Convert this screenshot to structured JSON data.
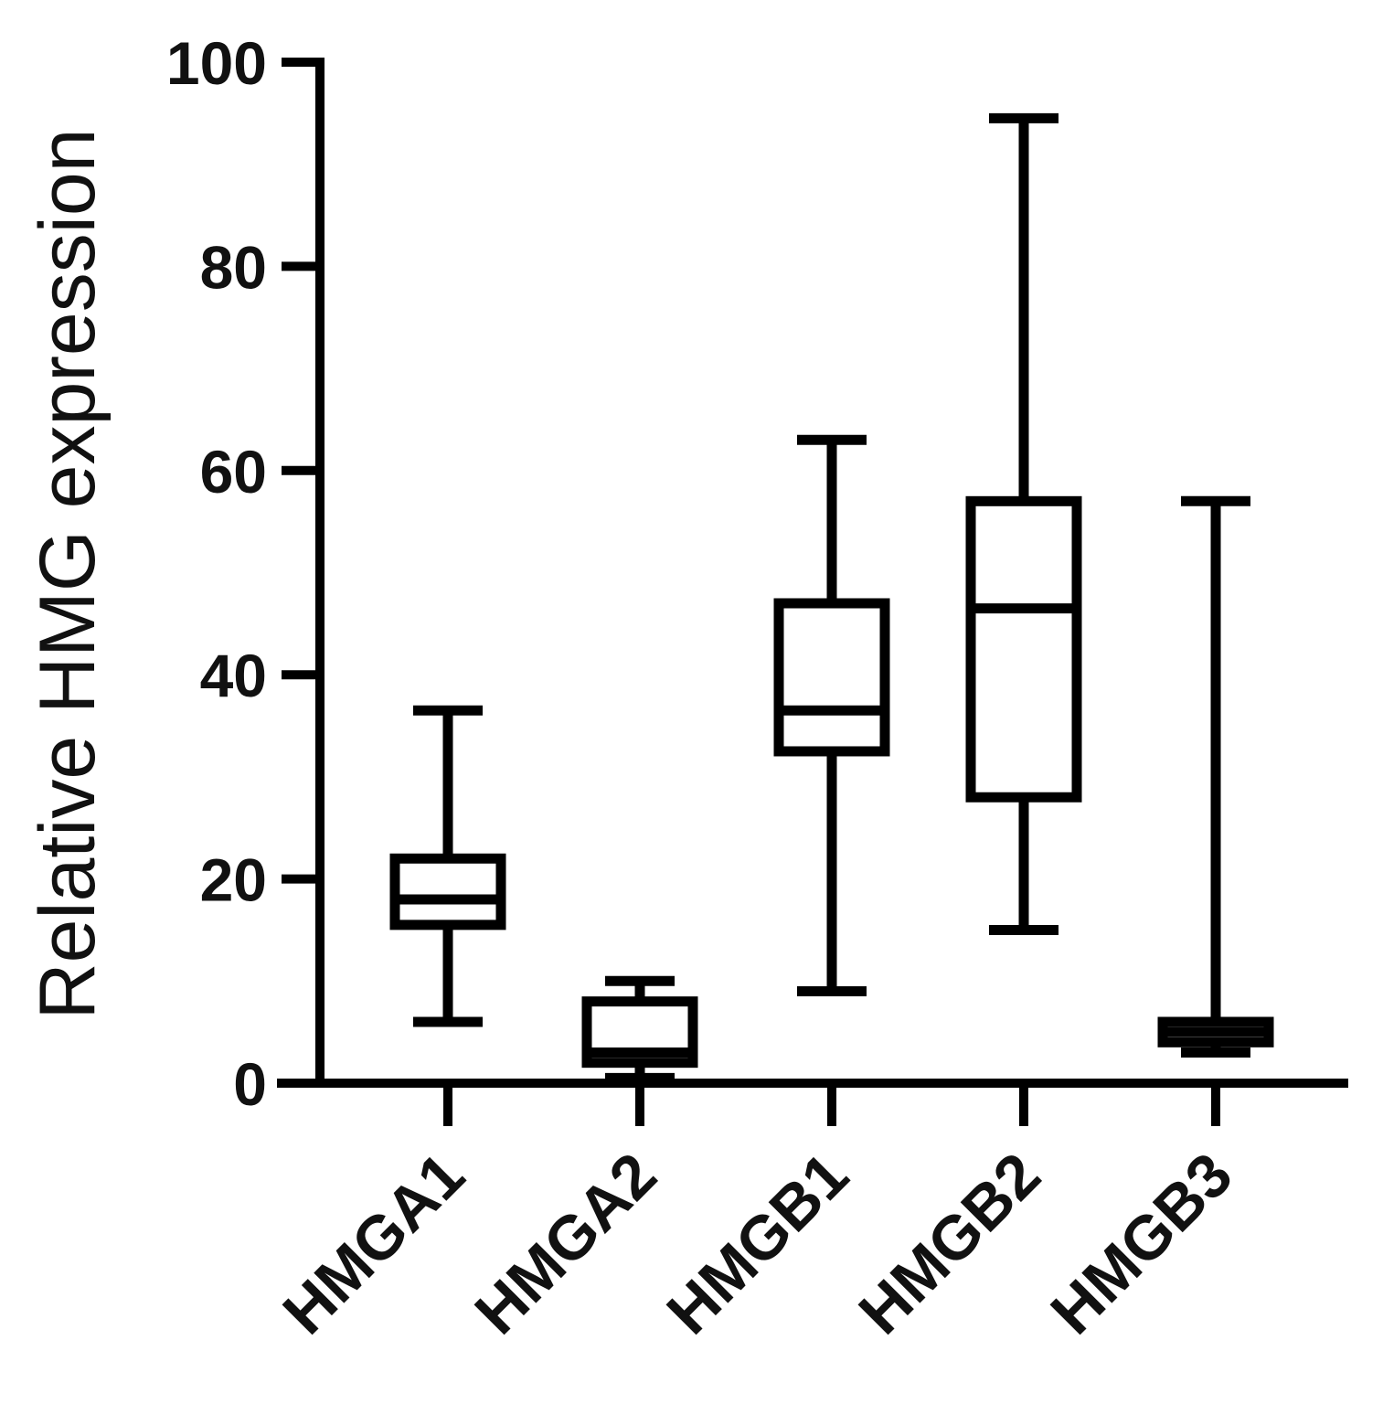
{
  "chart_data": {
    "type": "box",
    "ylabel": "Relative HMG expression",
    "ylim": [
      0,
      100
    ],
    "yticks": [
      "0",
      "20",
      "40",
      "60",
      "80",
      "100"
    ],
    "grid": false,
    "categories": [
      "HMGA1",
      "HMGA2",
      "HMGB1",
      "HMGB2",
      "HMGB3"
    ],
    "boxes": [
      {
        "category": "HMGA1",
        "min": 6,
        "q1": 15.5,
        "median": 18,
        "q3": 22,
        "max": 36.5
      },
      {
        "category": "HMGA2",
        "min": 0.5,
        "q1": 2,
        "median": 3,
        "q3": 8,
        "max": 10
      },
      {
        "category": "HMGB1",
        "min": 9,
        "q1": 32.5,
        "median": 36.5,
        "q3": 47,
        "max": 63
      },
      {
        "category": "HMGB2",
        "min": 15,
        "q1": 28,
        "median": 46.5,
        "q3": 57,
        "max": 94.5
      },
      {
        "category": "HMGB3",
        "min": 3,
        "q1": 4,
        "median": 5,
        "q3": 6,
        "max": 57
      }
    ],
    "colors": {
      "stroke": "#000000",
      "background": "#ffffff"
    }
  }
}
